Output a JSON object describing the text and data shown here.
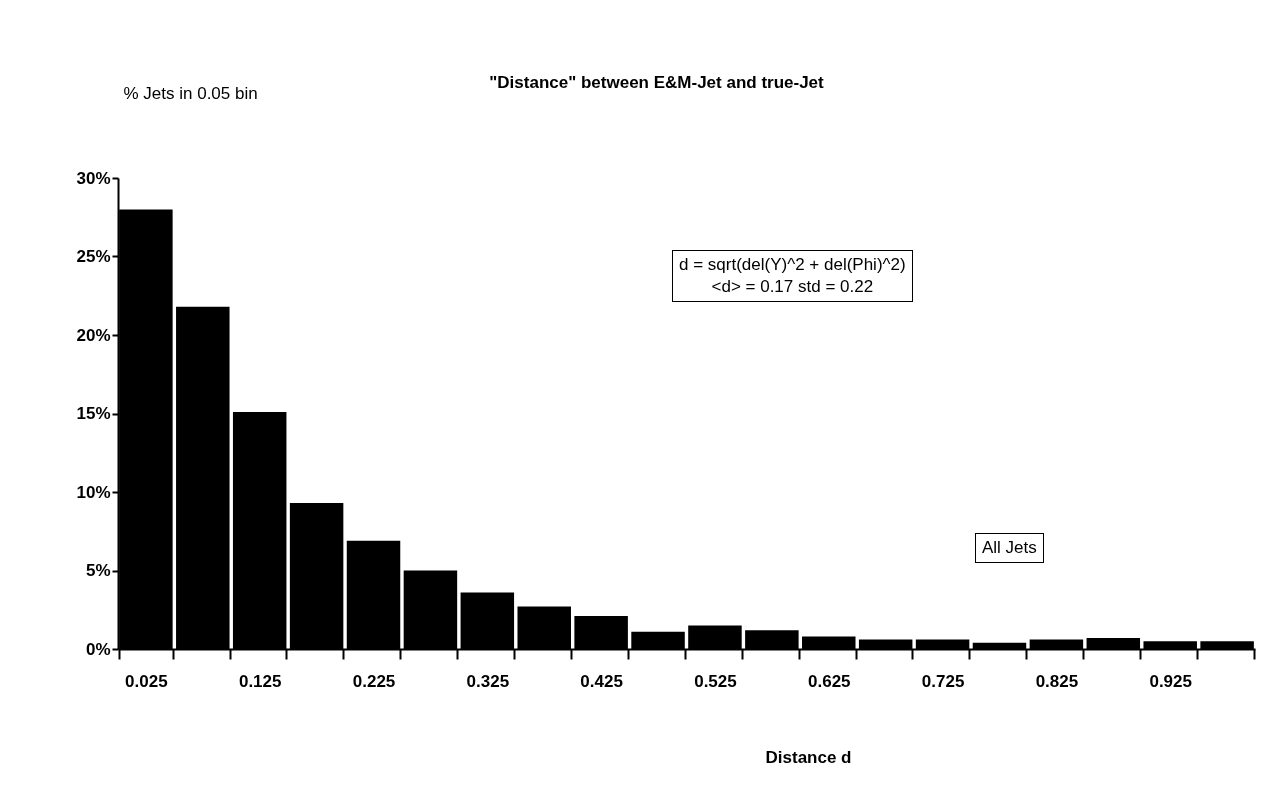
{
  "chart_data": {
    "type": "bar",
    "title": "\"Distance\" between E&M-Jet and true-Jet",
    "xlabel": "Distance d",
    "ylabel": "% Jets in 0.05 bin",
    "categories": [
      "0.025",
      null,
      "0.125",
      null,
      "0.225",
      null,
      "0.325",
      null,
      "0.425",
      null,
      "0.525",
      null,
      "0.625",
      null,
      "0.725",
      null,
      "0.825",
      null,
      "0.925",
      null
    ],
    "values": [
      28.0,
      21.8,
      15.1,
      9.3,
      6.9,
      5.0,
      3.6,
      2.7,
      2.1,
      1.1,
      1.5,
      1.2,
      0.8,
      0.6,
      0.6,
      0.4,
      0.6,
      0.7,
      0.5,
      0.5
    ],
    "color": "#000000",
    "ylim": [
      0,
      30
    ],
    "yticks": [
      {
        "value": 0,
        "label": "0%"
      },
      {
        "value": 5,
        "label": "5%"
      },
      {
        "value": 10,
        "label": "10%"
      },
      {
        "value": 15,
        "label": "15%"
      },
      {
        "value": 20,
        "label": "20%"
      },
      {
        "value": 25,
        "label": "25%"
      },
      {
        "value": 30,
        "label": "30%"
      }
    ],
    "annotations": [
      "d = sqrt(del(Y)^2 + del(Phi)^2)",
      "<d> = 0.17  std = 0.22",
      "All Jets"
    ]
  }
}
